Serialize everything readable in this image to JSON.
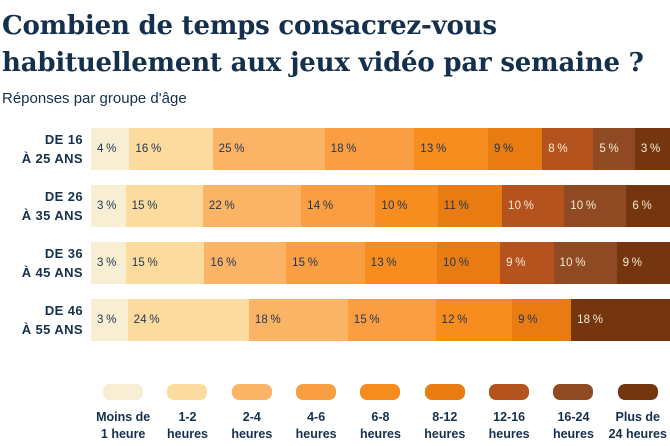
{
  "title": {
    "lines": [
      "Combien de temps consacrez-vous",
      "habituellement aux jeux vidéo par semaine ?"
    ]
  },
  "subtitle": "Réponses par groupe d'âge",
  "colors": {
    "background": "#ffffff",
    "navy": "#14304d",
    "segment_label_dark": "#1e3450",
    "segment_label_light": "#f7ecd1"
  },
  "chart_data": {
    "type": "bar",
    "orientation": "horizontal",
    "stacked": true,
    "value_unit": "%",
    "title": "Combien de temps consacrez-vous habituellement aux jeux vidéo par semaine ?",
    "subtitle": "Réponses par groupe d'âge",
    "legend_position": "bottom",
    "categories": [
      "Moins de 1 heure",
      "1-2 heures",
      "2-4 heures",
      "4-6 heures",
      "6-8 heures",
      "8-12 heures",
      "12-16 heures",
      "16-24 heures",
      "Plus de 24 heures"
    ],
    "palette": [
      "#f8eed3",
      "#fcdc9e",
      "#fbb465",
      "#f99e43",
      "#f78c1f",
      "#e87c12",
      "#b5531f",
      "#8f4a23",
      "#74350f"
    ],
    "legend": [
      {
        "lines": [
          "Moins de",
          "1 heure"
        ]
      },
      {
        "lines": [
          "1-2",
          "heures"
        ]
      },
      {
        "lines": [
          "2-4",
          "heures"
        ]
      },
      {
        "lines": [
          "4-6",
          "heures"
        ]
      },
      {
        "lines": [
          "6-8",
          "heures"
        ]
      },
      {
        "lines": [
          "8-12",
          "heures"
        ]
      },
      {
        "lines": [
          "12-16",
          "heures"
        ]
      },
      {
        "lines": [
          "16-24",
          "heures"
        ]
      },
      {
        "lines": [
          "Plus de",
          "24 heures"
        ]
      }
    ],
    "rows": [
      {
        "group": "De 16 à 25 ans",
        "label_lines": [
          "DE 16",
          "À 25 ANS"
        ],
        "segments": [
          {
            "category_index": 0,
            "value": 4,
            "label": "4 %"
          },
          {
            "category_index": 1,
            "value": 16,
            "label": "16 %"
          },
          {
            "category_index": 2,
            "value": 25,
            "label": "25 %"
          },
          {
            "category_index": 3,
            "value": 18,
            "label": "18 %"
          },
          {
            "category_index": 4,
            "value": 13,
            "label": "13 %"
          },
          {
            "category_index": 5,
            "value": 9,
            "label": "9 %"
          },
          {
            "category_index": 6,
            "value": 8,
            "label": "8 %"
          },
          {
            "category_index": 7,
            "value": 5,
            "label": "5 %"
          },
          {
            "category_index": 8,
            "value": 3,
            "label": "3 %"
          }
        ]
      },
      {
        "group": "De 26 à 35 ans",
        "label_lines": [
          "DE 26",
          "À 35 ANS"
        ],
        "segments": [
          {
            "category_index": 0,
            "value": 3,
            "label": "3 %"
          },
          {
            "category_index": 1,
            "value": 15,
            "label": "15 %"
          },
          {
            "category_index": 2,
            "value": 22,
            "label": "22 %"
          },
          {
            "category_index": 3,
            "value": 14,
            "label": "14 %"
          },
          {
            "category_index": 4,
            "value": 10,
            "label": "10 %"
          },
          {
            "category_index": 5,
            "value": 11,
            "label": "11 %"
          },
          {
            "category_index": 6,
            "value": 10,
            "label": "10 %"
          },
          {
            "category_index": 7,
            "value": 10,
            "label": "10 %"
          },
          {
            "category_index": 8,
            "value": 6,
            "label": "6 %"
          }
        ]
      },
      {
        "group": "De 36 à 45 ans",
        "label_lines": [
          "DE 36",
          "À 45 ANS"
        ],
        "segments": [
          {
            "category_index": 0,
            "value": 3,
            "label": "3 %"
          },
          {
            "category_index": 1,
            "value": 15,
            "label": "15 %"
          },
          {
            "category_index": 2,
            "value": 16,
            "label": "16 %"
          },
          {
            "category_index": 3,
            "value": 15,
            "label": "15 %"
          },
          {
            "category_index": 4,
            "value": 13,
            "label": "13 %"
          },
          {
            "category_index": 5,
            "value": 10,
            "label": "10 %"
          },
          {
            "category_index": 6,
            "value": 9,
            "label": "9 %"
          },
          {
            "category_index": 7,
            "value": 10,
            "label": "10 %"
          },
          {
            "category_index": 8,
            "value": 9,
            "label": "9 %"
          }
        ]
      },
      {
        "group": "De 46 à 55 ans",
        "label_lines": [
          "DE 46",
          "À 55 ANS"
        ],
        "segments": [
          {
            "category_index": 0,
            "value": 3,
            "label": "3 %"
          },
          {
            "category_index": 1,
            "value": 24,
            "label": "24 %"
          },
          {
            "category_index": 2,
            "value": 18,
            "label": "18 %"
          },
          {
            "category_index": 3,
            "value": 15,
            "label": "15 %"
          },
          {
            "category_index": 4,
            "value": 12,
            "label": "12 %"
          },
          {
            "category_index": 5,
            "value": 9,
            "label": "9 %"
          },
          {
            "category_index": 8,
            "value": 18,
            "label": "18 %"
          }
        ]
      }
    ]
  }
}
